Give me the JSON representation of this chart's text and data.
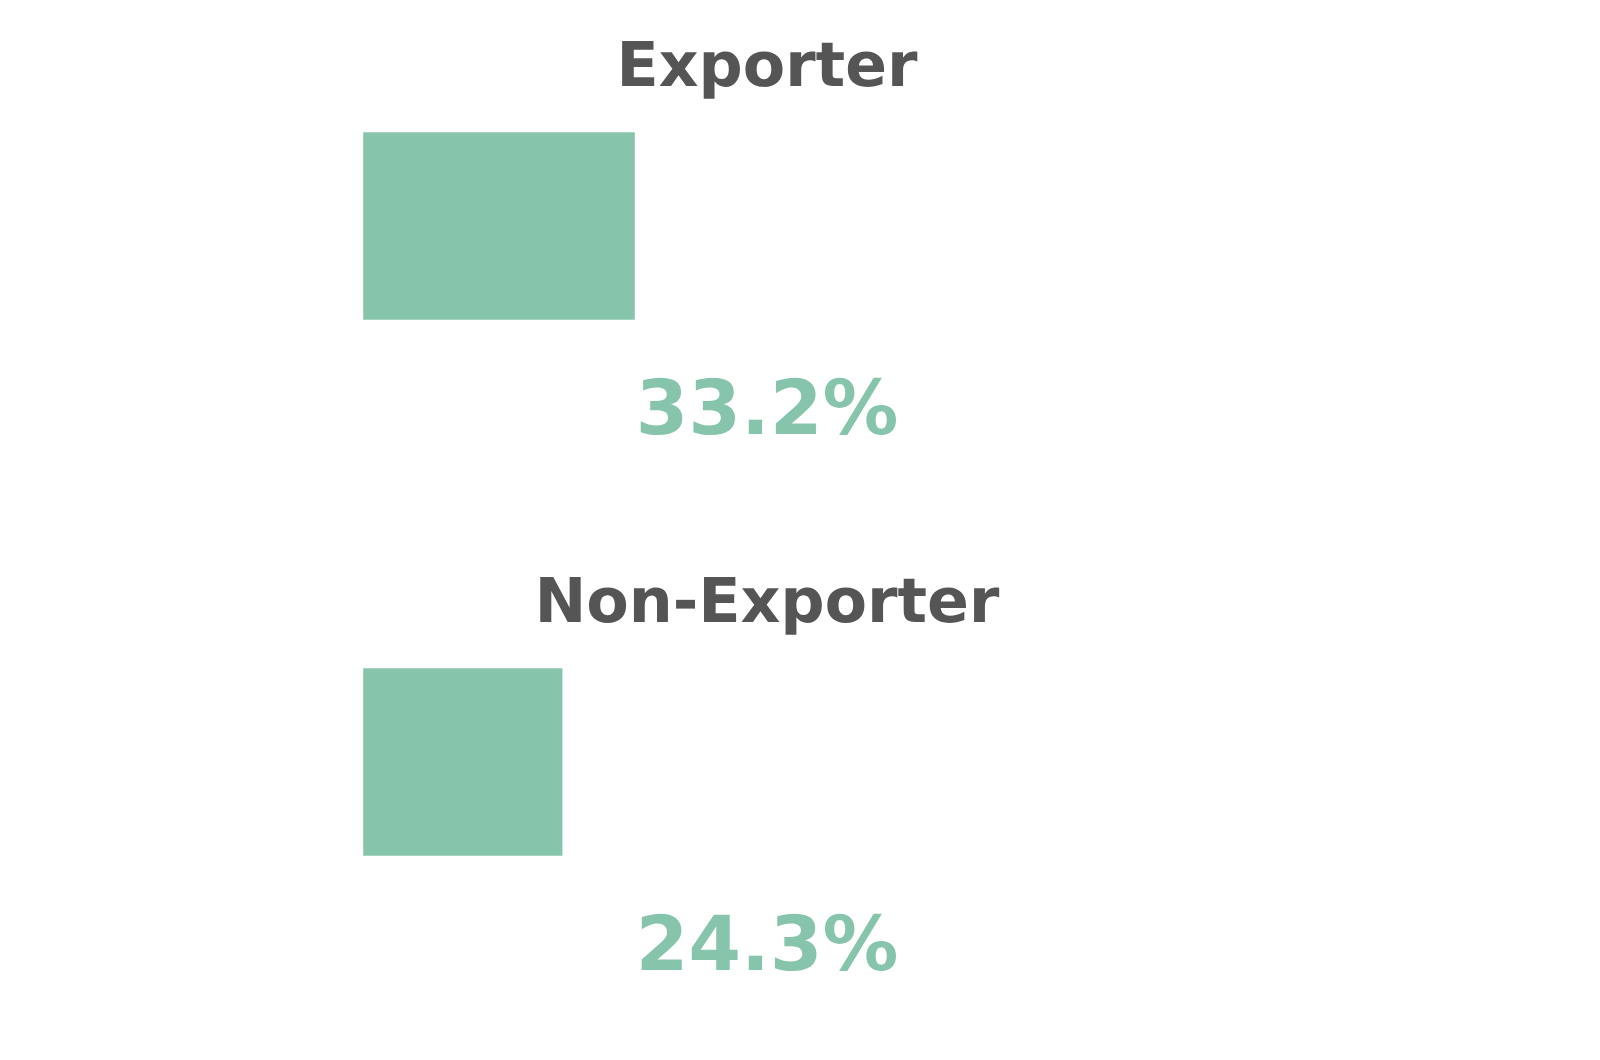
{
  "chart_data": {
    "type": "bar",
    "orientation": "horizontal",
    "categories": [
      "Exporter",
      "Non-Exporter"
    ],
    "values": [
      33.2,
      24.3
    ],
    "value_labels": [
      "33.2%",
      "24.3%"
    ],
    "color": "#86c5ab"
  }
}
